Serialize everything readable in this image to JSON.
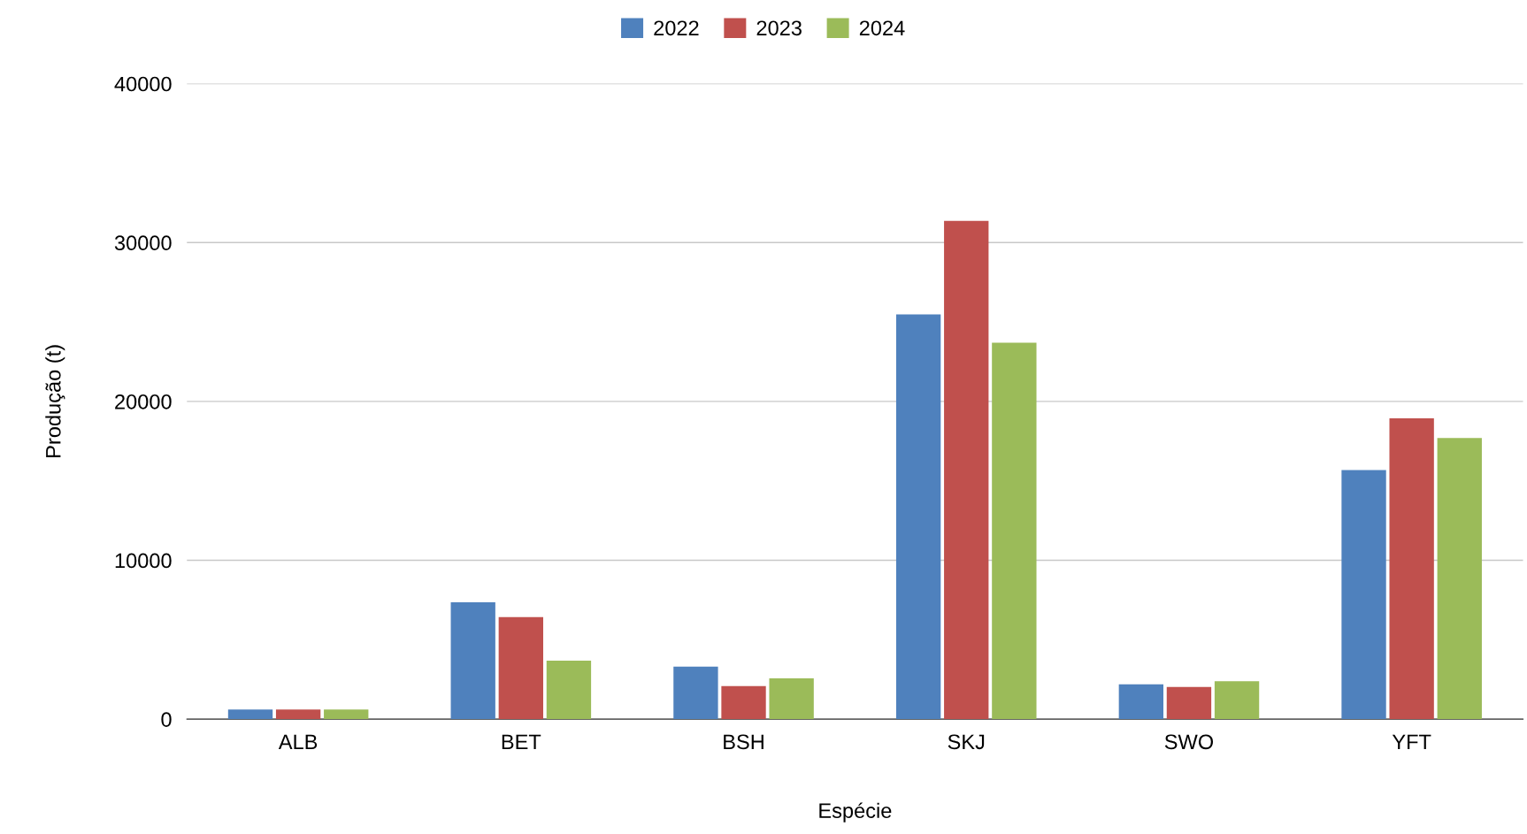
{
  "chart_data": {
    "type": "bar",
    "xlabel": "Espécie",
    "ylabel": "Produção (t)",
    "categories": [
      "ALB",
      "BET",
      "BSH",
      "SKJ",
      "SWO",
      "YFT"
    ],
    "series": [
      {
        "name": "2022",
        "color": "#4f81bd",
        "values": [
          600,
          7350,
          3310,
          25480,
          2200,
          15680
        ]
      },
      {
        "name": "2023",
        "color": "#c0504d",
        "values": [
          600,
          6430,
          2080,
          31360,
          2020,
          18930
        ]
      },
      {
        "name": "2024",
        "color": "#9bbb59",
        "values": [
          600,
          3680,
          2570,
          23700,
          2390,
          17700
        ]
      }
    ],
    "ylim": [
      0,
      40000
    ],
    "yticks": [
      0,
      10000,
      20000,
      30000,
      40000
    ],
    "grid": "y",
    "legend": "top"
  }
}
